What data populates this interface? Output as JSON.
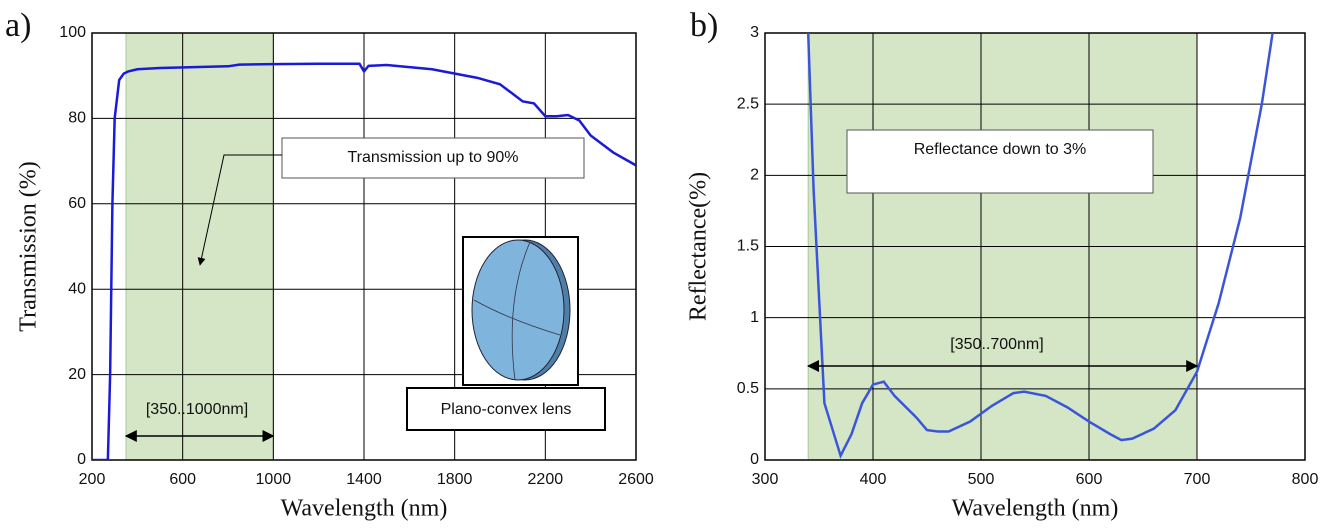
{
  "chart_data": [
    {
      "type": "line",
      "panel_label": "a)",
      "xlabel": "Wavelength (nm)",
      "ylabel": "Transmission (%)",
      "x": [
        200,
        270,
        280,
        290,
        300,
        320,
        340,
        360,
        400,
        500,
        800,
        850,
        1000,
        1200,
        1380,
        1400,
        1420,
        1500,
        1700,
        1900,
        2000,
        2050,
        2100,
        2150,
        2200,
        2250,
        2300,
        2350,
        2400,
        2500,
        2600
      ],
      "values": [
        0,
        0,
        20,
        60,
        80,
        89,
        90.5,
        91,
        91.5,
        91.8,
        92.2,
        92.6,
        92.7,
        92.8,
        92.8,
        91,
        92.3,
        92.5,
        91.5,
        89.5,
        88,
        86,
        84,
        83.5,
        80.5,
        80.5,
        80.8,
        79.5,
        76,
        72,
        69
      ],
      "color": "#1a1ad8",
      "shade": [
        350,
        1000
      ],
      "shade_color": "#d4e6c6",
      "xlim": [
        200,
        2600
      ],
      "xticks": [
        200,
        600,
        1000,
        1400,
        1800,
        2200,
        2600
      ],
      "ylim": [
        0,
        100
      ],
      "yticks": [
        0,
        20,
        40,
        60,
        80,
        100
      ],
      "grid": true,
      "annotations": [
        "Transmission up to 90%",
        "[350..1000nm]",
        "Plano-convex lens"
      ]
    },
    {
      "type": "line",
      "panel_label": "b)",
      "xlabel": "Wavelength (nm)",
      "ylabel": "Reflectance(%)",
      "x": [
        340,
        345,
        355,
        370,
        380,
        390,
        400,
        410,
        420,
        440,
        450,
        460,
        470,
        490,
        510,
        530,
        540,
        560,
        580,
        600,
        620,
        630,
        640,
        660,
        680,
        700,
        720,
        740,
        760,
        770
      ],
      "values": [
        3,
        1.9,
        0.4,
        0.03,
        0.18,
        0.4,
        0.53,
        0.55,
        0.45,
        0.3,
        0.21,
        0.2,
        0.2,
        0.27,
        0.38,
        0.47,
        0.48,
        0.45,
        0.37,
        0.27,
        0.18,
        0.14,
        0.15,
        0.22,
        0.35,
        0.62,
        1.1,
        1.7,
        2.5,
        3
      ],
      "color": "#3b55da",
      "shade": [
        340,
        700
      ],
      "shade_color": "#d4e6c6",
      "xlim": [
        300,
        800
      ],
      "xticks": [
        300,
        400,
        500,
        600,
        700,
        800
      ],
      "ylim": [
        0,
        3
      ],
      "yticks": [
        0,
        0.5,
        1,
        1.5,
        2,
        2.5,
        3
      ],
      "grid": true,
      "annotations": [
        "Reflectance down to 3%",
        "[350..700nm]"
      ]
    }
  ]
}
